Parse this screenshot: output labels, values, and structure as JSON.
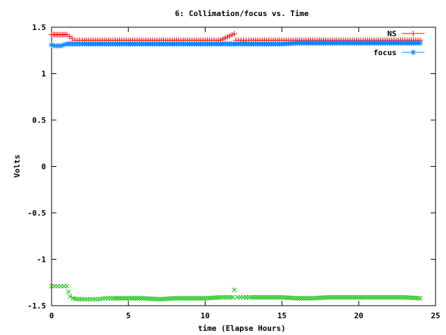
{
  "chart_data": {
    "type": "scatter",
    "title": "6: Collimation/focus vs. Time",
    "xlabel": "time (Elapse Hours)",
    "ylabel": "Volts",
    "xlim": [
      0,
      25
    ],
    "ylim": [
      -1.5,
      1.5
    ],
    "xticks": [
      0,
      5,
      10,
      15,
      20,
      25
    ],
    "xtick_labels": [
      "0",
      "5",
      "10",
      "15",
      "20",
      "25"
    ],
    "yticks": [
      -1.5,
      -1,
      -0.5,
      0,
      0.5,
      1,
      1.5
    ],
    "ytick_labels": [
      "-1.5",
      "-1",
      "-0.5",
      "0",
      "0.5",
      "1",
      "1.5"
    ],
    "grid": false,
    "legend_position": "top-right",
    "series": [
      {
        "name": "NS",
        "color": "#ff0000",
        "marker": "plus",
        "x": [
          0,
          0.1,
          0.2,
          0.3,
          0.4,
          0.5,
          0.6,
          0.7,
          0.8,
          0.9,
          1.0,
          1.5,
          2,
          3,
          4,
          5,
          6,
          7,
          8,
          9,
          10,
          11,
          11.9,
          12,
          12.5,
          13,
          14,
          15,
          16,
          17,
          18,
          19,
          20,
          21,
          22,
          23,
          24
        ],
        "y": [
          1.42,
          1.42,
          1.42,
          1.42,
          1.42,
          1.42,
          1.42,
          1.42,
          1.42,
          1.42,
          1.42,
          1.36,
          1.36,
          1.36,
          1.36,
          1.36,
          1.36,
          1.36,
          1.36,
          1.36,
          1.36,
          1.36,
          1.43,
          1.36,
          1.36,
          1.36,
          1.36,
          1.36,
          1.36,
          1.36,
          1.36,
          1.36,
          1.36,
          1.36,
          1.36,
          1.36,
          1.36
        ]
      },
      {
        "name": "",
        "color": "#00c000",
        "marker": "x",
        "x": [
          0,
          0.2,
          0.4,
          0.6,
          0.8,
          1.0,
          1.1,
          1.2,
          1.4,
          1.7,
          2,
          2.5,
          3,
          3.5,
          4,
          5,
          6,
          7,
          8,
          9,
          10,
          11,
          11.8,
          11.9,
          12.1,
          12.5,
          13,
          14,
          15,
          16,
          17,
          18,
          19,
          20,
          21,
          22,
          23,
          24
        ],
        "y": [
          -1.29,
          -1.29,
          -1.29,
          -1.29,
          -1.29,
          -1.29,
          -1.35,
          -1.4,
          -1.42,
          -1.43,
          -1.43,
          -1.43,
          -1.43,
          -1.42,
          -1.42,
          -1.42,
          -1.42,
          -1.43,
          -1.42,
          -1.42,
          -1.42,
          -1.41,
          -1.41,
          -1.33,
          -1.41,
          -1.41,
          -1.41,
          -1.41,
          -1.41,
          -1.42,
          -1.42,
          -1.41,
          -1.41,
          -1.41,
          -1.41,
          -1.41,
          -1.41,
          -1.42
        ]
      },
      {
        "name": "focus",
        "color": "#0080ff",
        "marker": "star",
        "x": [
          0,
          0.2,
          0.4,
          0.6,
          0.8,
          1,
          1.5,
          2,
          3,
          4,
          5,
          6,
          7,
          8,
          9,
          10,
          11,
          12,
          13,
          14,
          15,
          16,
          17,
          18,
          19,
          20,
          21,
          22,
          23,
          24
        ],
        "y": [
          1.31,
          1.3,
          1.3,
          1.3,
          1.31,
          1.32,
          1.32,
          1.32,
          1.32,
          1.32,
          1.32,
          1.32,
          1.32,
          1.32,
          1.32,
          1.32,
          1.32,
          1.32,
          1.32,
          1.32,
          1.32,
          1.33,
          1.33,
          1.33,
          1.33,
          1.33,
          1.33,
          1.33,
          1.33,
          1.33
        ]
      }
    ]
  }
}
